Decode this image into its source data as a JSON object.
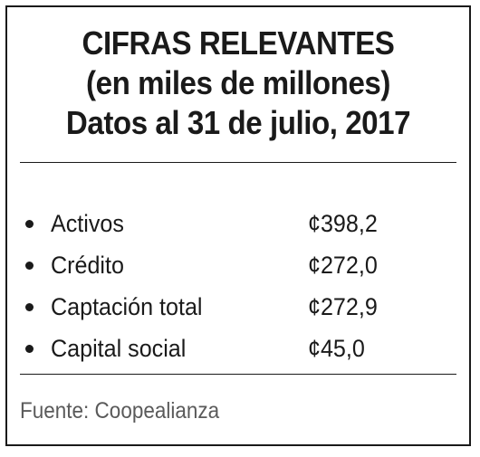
{
  "header": {
    "title": "CIFRAS RELEVANTES",
    "subtitle": "(en miles de millones)",
    "date_line": "Datos al 31 de julio, 2017"
  },
  "figures": [
    {
      "label": "Activos",
      "value": "¢398,2"
    },
    {
      "label": "Crédito",
      "value": "¢272,0"
    },
    {
      "label": "Captación total",
      "value": "¢272,9"
    },
    {
      "label": "Capital social",
      "value": "¢45,0"
    }
  ],
  "footer": {
    "source": "Fuente: Coopealianza"
  }
}
